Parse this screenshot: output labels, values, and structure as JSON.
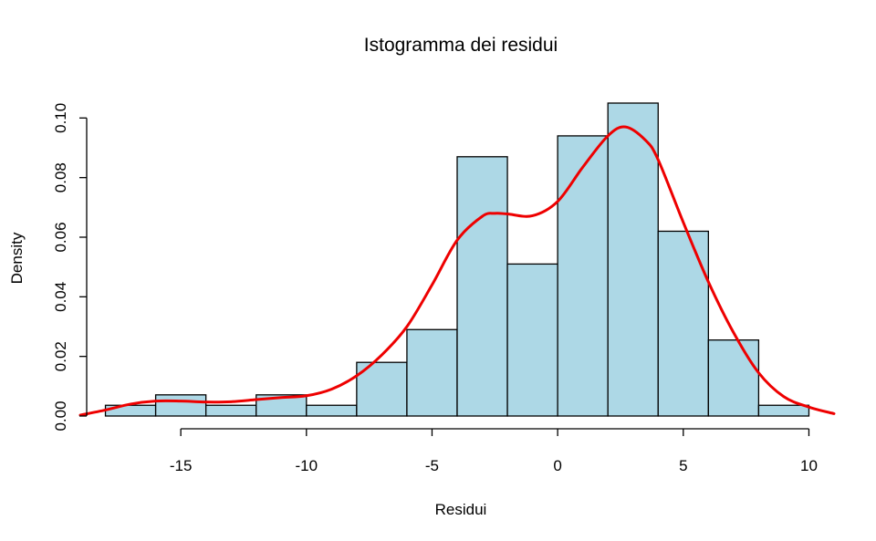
{
  "chart_data": {
    "type": "bar",
    "title": "Istogramma dei residui",
    "xlabel": "Residui",
    "ylabel": "Density",
    "xlim": [
      -19,
      11
    ],
    "ylim": [
      0,
      0.105
    ],
    "x_ticks": [
      -15,
      -10,
      -5,
      0,
      5,
      10
    ],
    "y_ticks": [
      0.0,
      0.02,
      0.04,
      0.06,
      0.08,
      0.1
    ],
    "x_tick_labels": [
      "-15",
      "-10",
      "-5",
      "0",
      "5",
      "10"
    ],
    "y_tick_labels": [
      "0.00",
      "0.02",
      "0.04",
      "0.06",
      "0.08",
      "0.10"
    ],
    "grid": false,
    "bins": [
      {
        "x0": -18,
        "x1": -16,
        "density": 0.0036
      },
      {
        "x0": -16,
        "x1": -14,
        "density": 0.0071
      },
      {
        "x0": -14,
        "x1": -12,
        "density": 0.0036
      },
      {
        "x0": -12,
        "x1": -10,
        "density": 0.0071
      },
      {
        "x0": -10,
        "x1": -8,
        "density": 0.0036
      },
      {
        "x0": -8,
        "x1": -6,
        "density": 0.018
      },
      {
        "x0": -6,
        "x1": -4,
        "density": 0.029
      },
      {
        "x0": -4,
        "x1": -2,
        "density": 0.087
      },
      {
        "x0": -2,
        "x1": 0,
        "density": 0.051
      },
      {
        "x0": 0,
        "x1": 2,
        "density": 0.094
      },
      {
        "x0": 2,
        "x1": 4,
        "density": 0.105
      },
      {
        "x0": 4,
        "x1": 6,
        "density": 0.062
      },
      {
        "x0": 6,
        "x1": 8,
        "density": 0.0255
      },
      {
        "x0": 8,
        "x1": 10,
        "density": 0.0036
      }
    ],
    "density_curve": {
      "color": "#ee0000",
      "points": [
        [
          -19,
          0.0003
        ],
        [
          -18,
          0.002
        ],
        [
          -17,
          0.004
        ],
        [
          -16,
          0.005
        ],
        [
          -15,
          0.005
        ],
        [
          -14,
          0.0047
        ],
        [
          -13,
          0.0048
        ],
        [
          -12,
          0.0055
        ],
        [
          -11,
          0.0062
        ],
        [
          -10,
          0.0068
        ],
        [
          -9,
          0.009
        ],
        [
          -8,
          0.0135
        ],
        [
          -7,
          0.0205
        ],
        [
          -6,
          0.03
        ],
        [
          -5,
          0.044
        ],
        [
          -4,
          0.059
        ],
        [
          -3,
          0.067
        ],
        [
          -2.5,
          0.068
        ],
        [
          -2,
          0.0678
        ],
        [
          -1,
          0.0672
        ],
        [
          0,
          0.072
        ],
        [
          1,
          0.0835
        ],
        [
          2,
          0.094
        ],
        [
          2.7,
          0.097
        ],
        [
          3.5,
          0.0925
        ],
        [
          4,
          0.086
        ],
        [
          5,
          0.065
        ],
        [
          6,
          0.045
        ],
        [
          7,
          0.028
        ],
        [
          8,
          0.0145
        ],
        [
          9,
          0.0065
        ],
        [
          10,
          0.003
        ],
        [
          11,
          0.0008
        ]
      ]
    },
    "bar_fill": "#add8e6",
    "bar_stroke": "#000000"
  }
}
